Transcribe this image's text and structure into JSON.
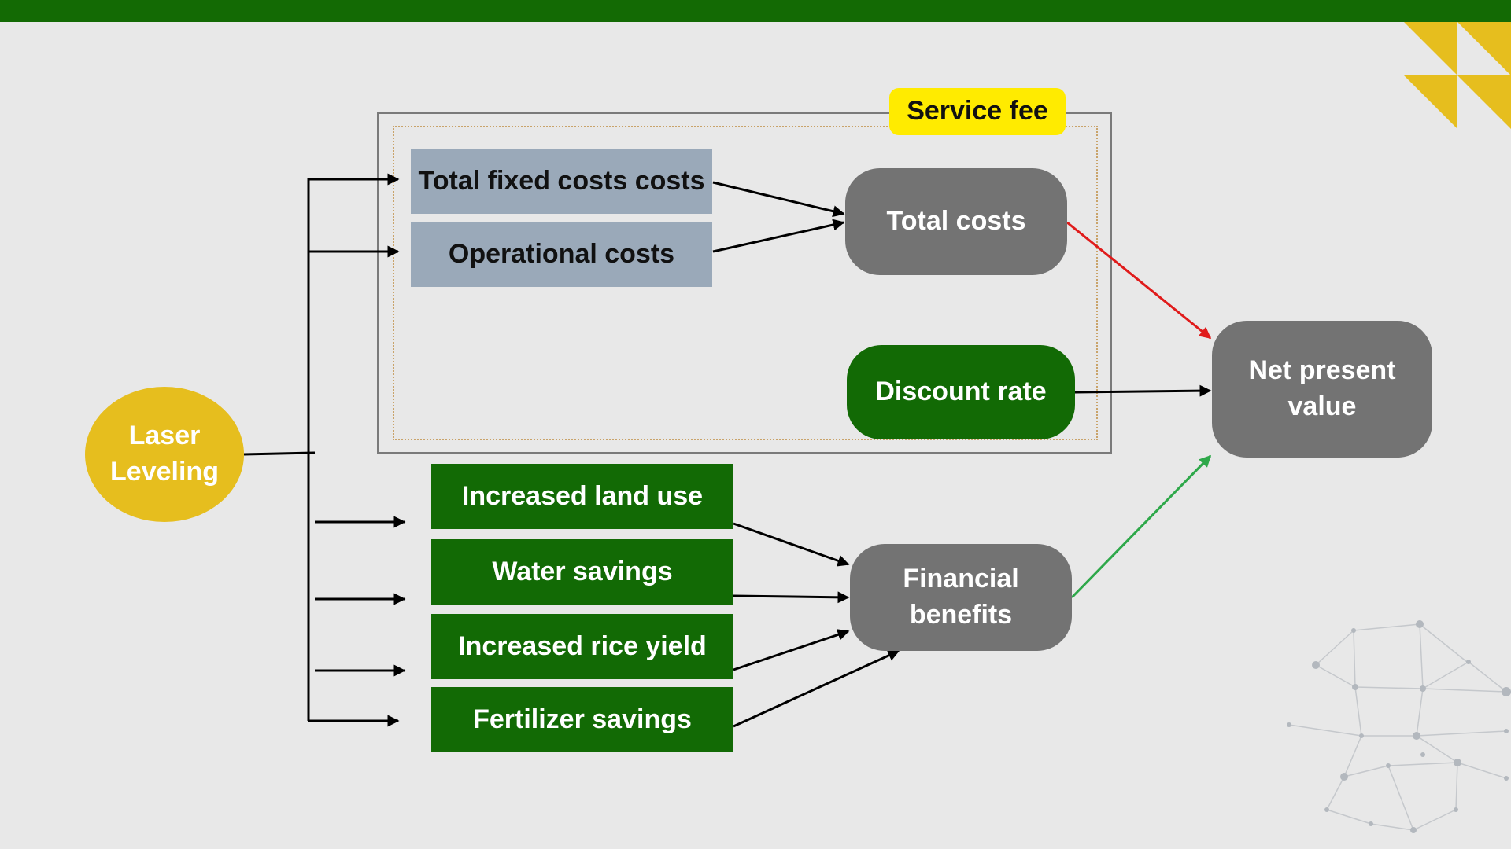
{
  "nodes": {
    "laser_leveling": "Laser Leveling",
    "total_fixed_costs": "Total fixed costs costs",
    "operational_costs": "Operational costs",
    "service_fee": "Service fee",
    "total_costs": "Total costs",
    "discount_rate": "Discount rate",
    "net_present_value": "Net present value",
    "increased_land_use": "Increased land use",
    "water_savings": "Water savings",
    "increased_rice_yield": "Increased rice yield",
    "fertilizer_savings": "Fertilizer savings",
    "financial_benefits": "Financial benefits"
  },
  "colors": {
    "top_bar": "#136a04",
    "cost_box": "#9aa9b9",
    "benefit_box": "#126a05",
    "result_box": "#737373",
    "laser": "#e6be1e",
    "service_fee": "#ffeb00",
    "arrow_costs_to_npv": "#e01b1b",
    "arrow_benefits_to_npv": "#2ea84a"
  }
}
